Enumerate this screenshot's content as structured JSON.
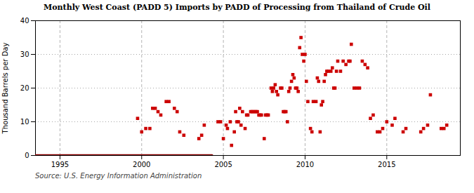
{
  "chart_data": {
    "type": "scatter",
    "title": "Monthly West Coast (PADD 5) Imports by PADD of Processing from Thailand of Crude Oil",
    "ylabel": "Thousand Barrels per Day",
    "source": "Source: U.S. Energy Information Administration",
    "xlim": [
      1993.5,
      2019.5
    ],
    "ylim": [
      0,
      40
    ],
    "xticks": [
      1995,
      2000,
      2005,
      2010,
      2015
    ],
    "yticks": [
      0,
      10,
      20,
      30,
      40
    ],
    "grid": true,
    "series": [
      {
        "type": "line",
        "color": "#8b0000",
        "line_style": "solid",
        "x": [
          1993.5,
          2004.3
        ],
        "values": [
          0,
          0
        ]
      },
      {
        "type": "scatter",
        "color": "#cc0000",
        "marker": "square",
        "x": [
          1999.75,
          2000.0,
          2000.25,
          2000.5,
          2000.67,
          2000.83,
          2001.0,
          2001.17,
          2001.5,
          2001.67,
          2002.0,
          2002.17,
          2002.33,
          2002.58,
          2003.5,
          2003.67,
          2003.83,
          2004.67,
          2004.83,
          2005.0,
          2005.17,
          2005.25,
          2005.42,
          2005.5,
          2005.67,
          2005.75,
          2005.83,
          2005.92,
          2006.0,
          2006.08,
          2006.17,
          2006.33,
          2006.42,
          2006.5,
          2006.67,
          2006.75,
          2006.83,
          2006.92,
          2007.0,
          2007.08,
          2007.17,
          2007.25,
          2007.33,
          2007.5,
          2007.58,
          2007.67,
          2007.75,
          2007.92,
          2008.0,
          2008.08,
          2008.17,
          2008.25,
          2008.33,
          2008.5,
          2008.58,
          2008.67,
          2008.75,
          2008.83,
          2008.92,
          2009.0,
          2009.08,
          2009.17,
          2009.25,
          2009.33,
          2009.42,
          2009.5,
          2009.58,
          2009.67,
          2009.75,
          2009.83,
          2009.92,
          2010.0,
          2010.08,
          2010.17,
          2010.33,
          2010.42,
          2010.5,
          2010.67,
          2010.75,
          2010.83,
          2010.92,
          2011.0,
          2011.08,
          2011.17,
          2011.25,
          2011.33,
          2011.42,
          2011.58,
          2011.67,
          2011.75,
          2011.83,
          2011.92,
          2012.0,
          2012.17,
          2012.33,
          2012.5,
          2012.67,
          2012.75,
          2012.83,
          2013.0,
          2013.17,
          2013.33,
          2013.5,
          2013.67,
          2013.83,
          2014.0,
          2014.17,
          2014.42,
          2014.58,
          2014.75,
          2015.0,
          2015.33,
          2015.5,
          2016.0,
          2016.17,
          2017.08,
          2017.25,
          2017.5,
          2017.67,
          2018.33,
          2018.5,
          2018.67
        ],
        "values": [
          11,
          7,
          8,
          8,
          14,
          14,
          13,
          12,
          16,
          16,
          14,
          13,
          7,
          6,
          5,
          6,
          9,
          10,
          10,
          5,
          9,
          8,
          10,
          3,
          7,
          13,
          10,
          10,
          14,
          9,
          13,
          8,
          12,
          12,
          13,
          13,
          13,
          13,
          13,
          13,
          12,
          12,
          12,
          5,
          12,
          12,
          12,
          20,
          19,
          20,
          21,
          19,
          18,
          20,
          20,
          13,
          13,
          13,
          10,
          19,
          20,
          22,
          24,
          23,
          20,
          20,
          19,
          32,
          35,
          30,
          28,
          30,
          22,
          16,
          8,
          7,
          16,
          16,
          23,
          22,
          7,
          15,
          16,
          22,
          24,
          25,
          25,
          25,
          26,
          20,
          20,
          25,
          28,
          25,
          28,
          27,
          28,
          28,
          33,
          20,
          20,
          20,
          28,
          27,
          26,
          11,
          12,
          7,
          7,
          8,
          10,
          9,
          11,
          7,
          8,
          7,
          8,
          9,
          18,
          8,
          8,
          9
        ]
      }
    ]
  }
}
